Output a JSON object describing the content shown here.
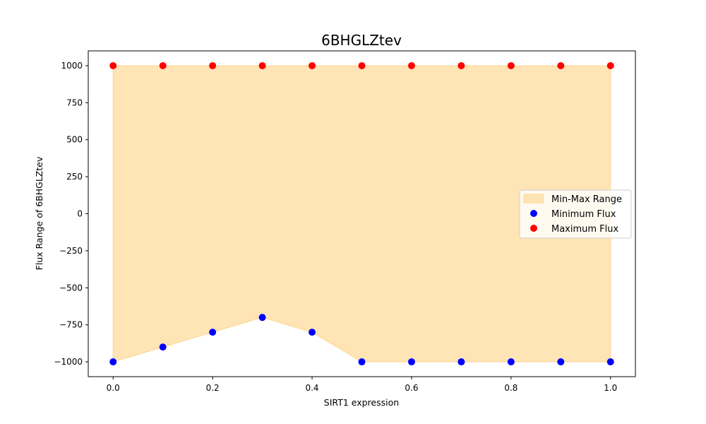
{
  "chart_data": {
    "type": "scatter",
    "title": "6BHGLZtev",
    "xlabel": "SIRT1 expression",
    "ylabel": "Flux Range of 6BHGLZtev",
    "xlim": [
      -0.05,
      1.05
    ],
    "ylim": [
      -1100,
      1100
    ],
    "xticks": [
      0.0,
      0.2,
      0.4,
      0.6,
      0.8,
      1.0
    ],
    "xtick_labels": [
      "0.0",
      "0.2",
      "0.4",
      "0.6",
      "0.8",
      "1.0"
    ],
    "yticks": [
      -1000,
      -750,
      -500,
      -250,
      0,
      250,
      500,
      750,
      1000
    ],
    "ytick_labels": [
      "−1000",
      "−750",
      "−500",
      "−250",
      "0",
      "250",
      "500",
      "750",
      "1000"
    ],
    "x": [
      0.0,
      0.1,
      0.2,
      0.3,
      0.4,
      0.5,
      0.6,
      0.7,
      0.8,
      0.9,
      1.0
    ],
    "grid": false,
    "legend_position": "center-right",
    "fill": {
      "name": "Min-Max Range",
      "color": "#ffe4b5",
      "edge": "#ffd591"
    },
    "series": [
      {
        "name": "Minimum Flux",
        "color": "#0000ff",
        "values": [
          -1000,
          -900,
          -800,
          -700,
          -800,
          -1000,
          -1000,
          -1000,
          -1000,
          -1000,
          -1000
        ]
      },
      {
        "name": "Maximum Flux",
        "color": "#ff0000",
        "values": [
          1000,
          1000,
          1000,
          1000,
          1000,
          1000,
          1000,
          1000,
          1000,
          1000,
          1000
        ]
      }
    ]
  }
}
